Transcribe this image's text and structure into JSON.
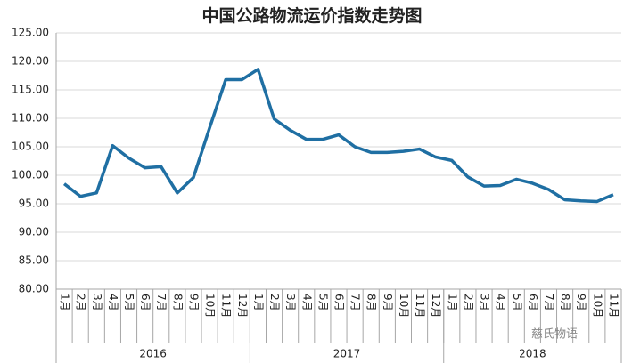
{
  "chart_data": {
    "type": "line",
    "title": "中国公路物流运价指数走势图",
    "categories": [
      "1月",
      "2月",
      "3月",
      "4月",
      "5月",
      "6月",
      "7月",
      "8月",
      "9月",
      "10月",
      "11月",
      "12月",
      "1月",
      "2月",
      "3月",
      "4月",
      "5月",
      "6月",
      "7月",
      "8月",
      "9月",
      "10月",
      "11月",
      "12月",
      "1月",
      "2月",
      "3月",
      "4月",
      "5月",
      "6月",
      "7月",
      "8月",
      "9月",
      "10月",
      "11月"
    ],
    "groups": [
      {
        "label": "2016",
        "count": 12
      },
      {
        "label": "2017",
        "count": 12
      },
      {
        "label": "2018",
        "count": 11
      }
    ],
    "series": [
      {
        "name": "中国公路物流运价指数",
        "color": "#1f6fa3",
        "values": [
          98.5,
          96.3,
          96.9,
          105.2,
          103.0,
          101.3,
          101.5,
          96.9,
          99.6,
          108.3,
          116.8,
          116.8,
          118.6,
          109.9,
          107.9,
          106.3,
          106.3,
          107.1,
          105.0,
          104.0,
          104.0,
          104.2,
          104.6,
          103.2,
          102.6,
          99.7,
          98.1,
          98.2,
          99.3,
          98.6,
          97.5,
          95.7,
          95.5,
          95.4,
          96.6
        ]
      }
    ],
    "ylim": [
      80,
      125
    ],
    "yticks": [
      {
        "value": 80,
        "label": "80.00"
      },
      {
        "value": 85,
        "label": "85.00"
      },
      {
        "value": 90,
        "label": "90.00"
      },
      {
        "value": 95,
        "label": "95.00"
      },
      {
        "value": 100,
        "label": "100.00"
      },
      {
        "value": 105,
        "label": "105.00"
      },
      {
        "value": 110,
        "label": "110.00"
      },
      {
        "value": 115,
        "label": "115.00"
      },
      {
        "value": 120,
        "label": "120.00"
      },
      {
        "value": 125,
        "label": "125.00"
      }
    ],
    "grid": true,
    "annotation": "慈氏物语"
  }
}
